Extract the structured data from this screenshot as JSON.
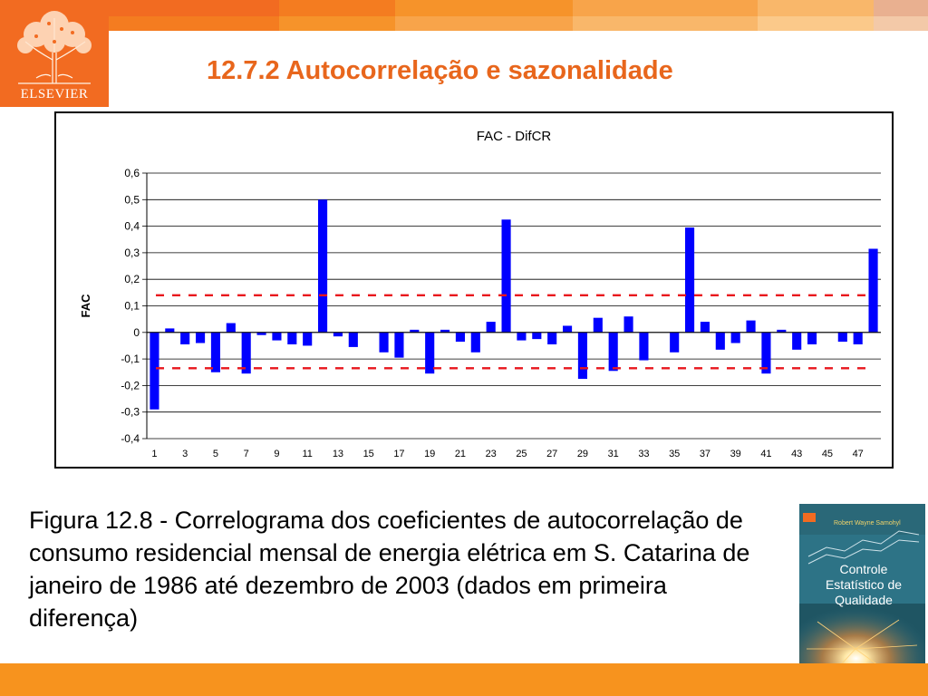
{
  "header": {
    "publisher": "ELSEVIER",
    "title": "12.7.2 Autocorrelação e sazonalidade",
    "bar_colors": [
      "#f26b21",
      "#f47c20",
      "#f6932a",
      "#f8a44a",
      "#f9b76a",
      "#fbc98a",
      "#e9b090"
    ]
  },
  "chart_data": {
    "type": "bar",
    "title": "FAC - DifCR",
    "xlabel": "",
    "ylabel": "FAC",
    "ylim": [
      -0.4,
      0.6
    ],
    "yticks": [
      0.6,
      0.5,
      0.4,
      0.3,
      0.2,
      0.1,
      0,
      -0.1,
      -0.2,
      -0.3,
      -0.4
    ],
    "ytick_labels": [
      "0,6",
      "0,5",
      "0,4",
      "0,3",
      "0,2",
      "0,1",
      "0",
      "-0,1",
      "-0,2",
      "-0,3",
      "-0,4"
    ],
    "categories": [
      "1",
      "2",
      "3",
      "4",
      "5",
      "6",
      "7",
      "8",
      "9",
      "10",
      "11",
      "12",
      "13",
      "14",
      "15",
      "16",
      "17",
      "18",
      "19",
      "20",
      "21",
      "22",
      "23",
      "24",
      "25",
      "26",
      "27",
      "28",
      "29",
      "30",
      "31",
      "32",
      "33",
      "34",
      "35",
      "36",
      "37",
      "38",
      "39",
      "40",
      "41",
      "42",
      "43",
      "44",
      "45",
      "46",
      "47",
      "48"
    ],
    "xtick_labels": [
      "1",
      "3",
      "5",
      "7",
      "9",
      "11",
      "13",
      "15",
      "17",
      "19",
      "21",
      "23",
      "25",
      "27",
      "29",
      "31",
      "33",
      "35",
      "37",
      "39",
      "41",
      "43",
      "45",
      "47"
    ],
    "values": [
      -0.29,
      0.015,
      -0.045,
      -0.04,
      -0.15,
      0.035,
      -0.155,
      -0.01,
      -0.03,
      -0.045,
      -0.05,
      0.5,
      -0.015,
      -0.055,
      0,
      -0.075,
      -0.095,
      0.01,
      -0.155,
      0.01,
      -0.035,
      -0.075,
      0.04,
      0.425,
      -0.03,
      -0.025,
      -0.045,
      0.025,
      -0.175,
      0.055,
      -0.145,
      0.06,
      -0.105,
      0,
      -0.075,
      0.395,
      0.04,
      -0.065,
      -0.04,
      0.045,
      -0.155,
      0.01,
      -0.065,
      -0.045,
      0,
      -0.035,
      -0.045,
      0.315
    ],
    "confidence_limits": [
      0.14,
      -0.135
    ],
    "bar_color": "#0000ff",
    "limit_color": "#e8161c",
    "grid": true
  },
  "caption": "Figura 12.8 - Correlograma dos coeficientes de autocorrelação de consumo residencial mensal de energia elétrica em S. Catarina de janeiro de 1986 até dezembro de 2003 (dados em primeira diferença)",
  "book": {
    "author": "Robert Wayne Samohyl",
    "title_line1": "Controle",
    "title_line2": "Estatístico de",
    "title_line3": "Qualidade"
  },
  "footer": {
    "color": "#f7931e"
  }
}
